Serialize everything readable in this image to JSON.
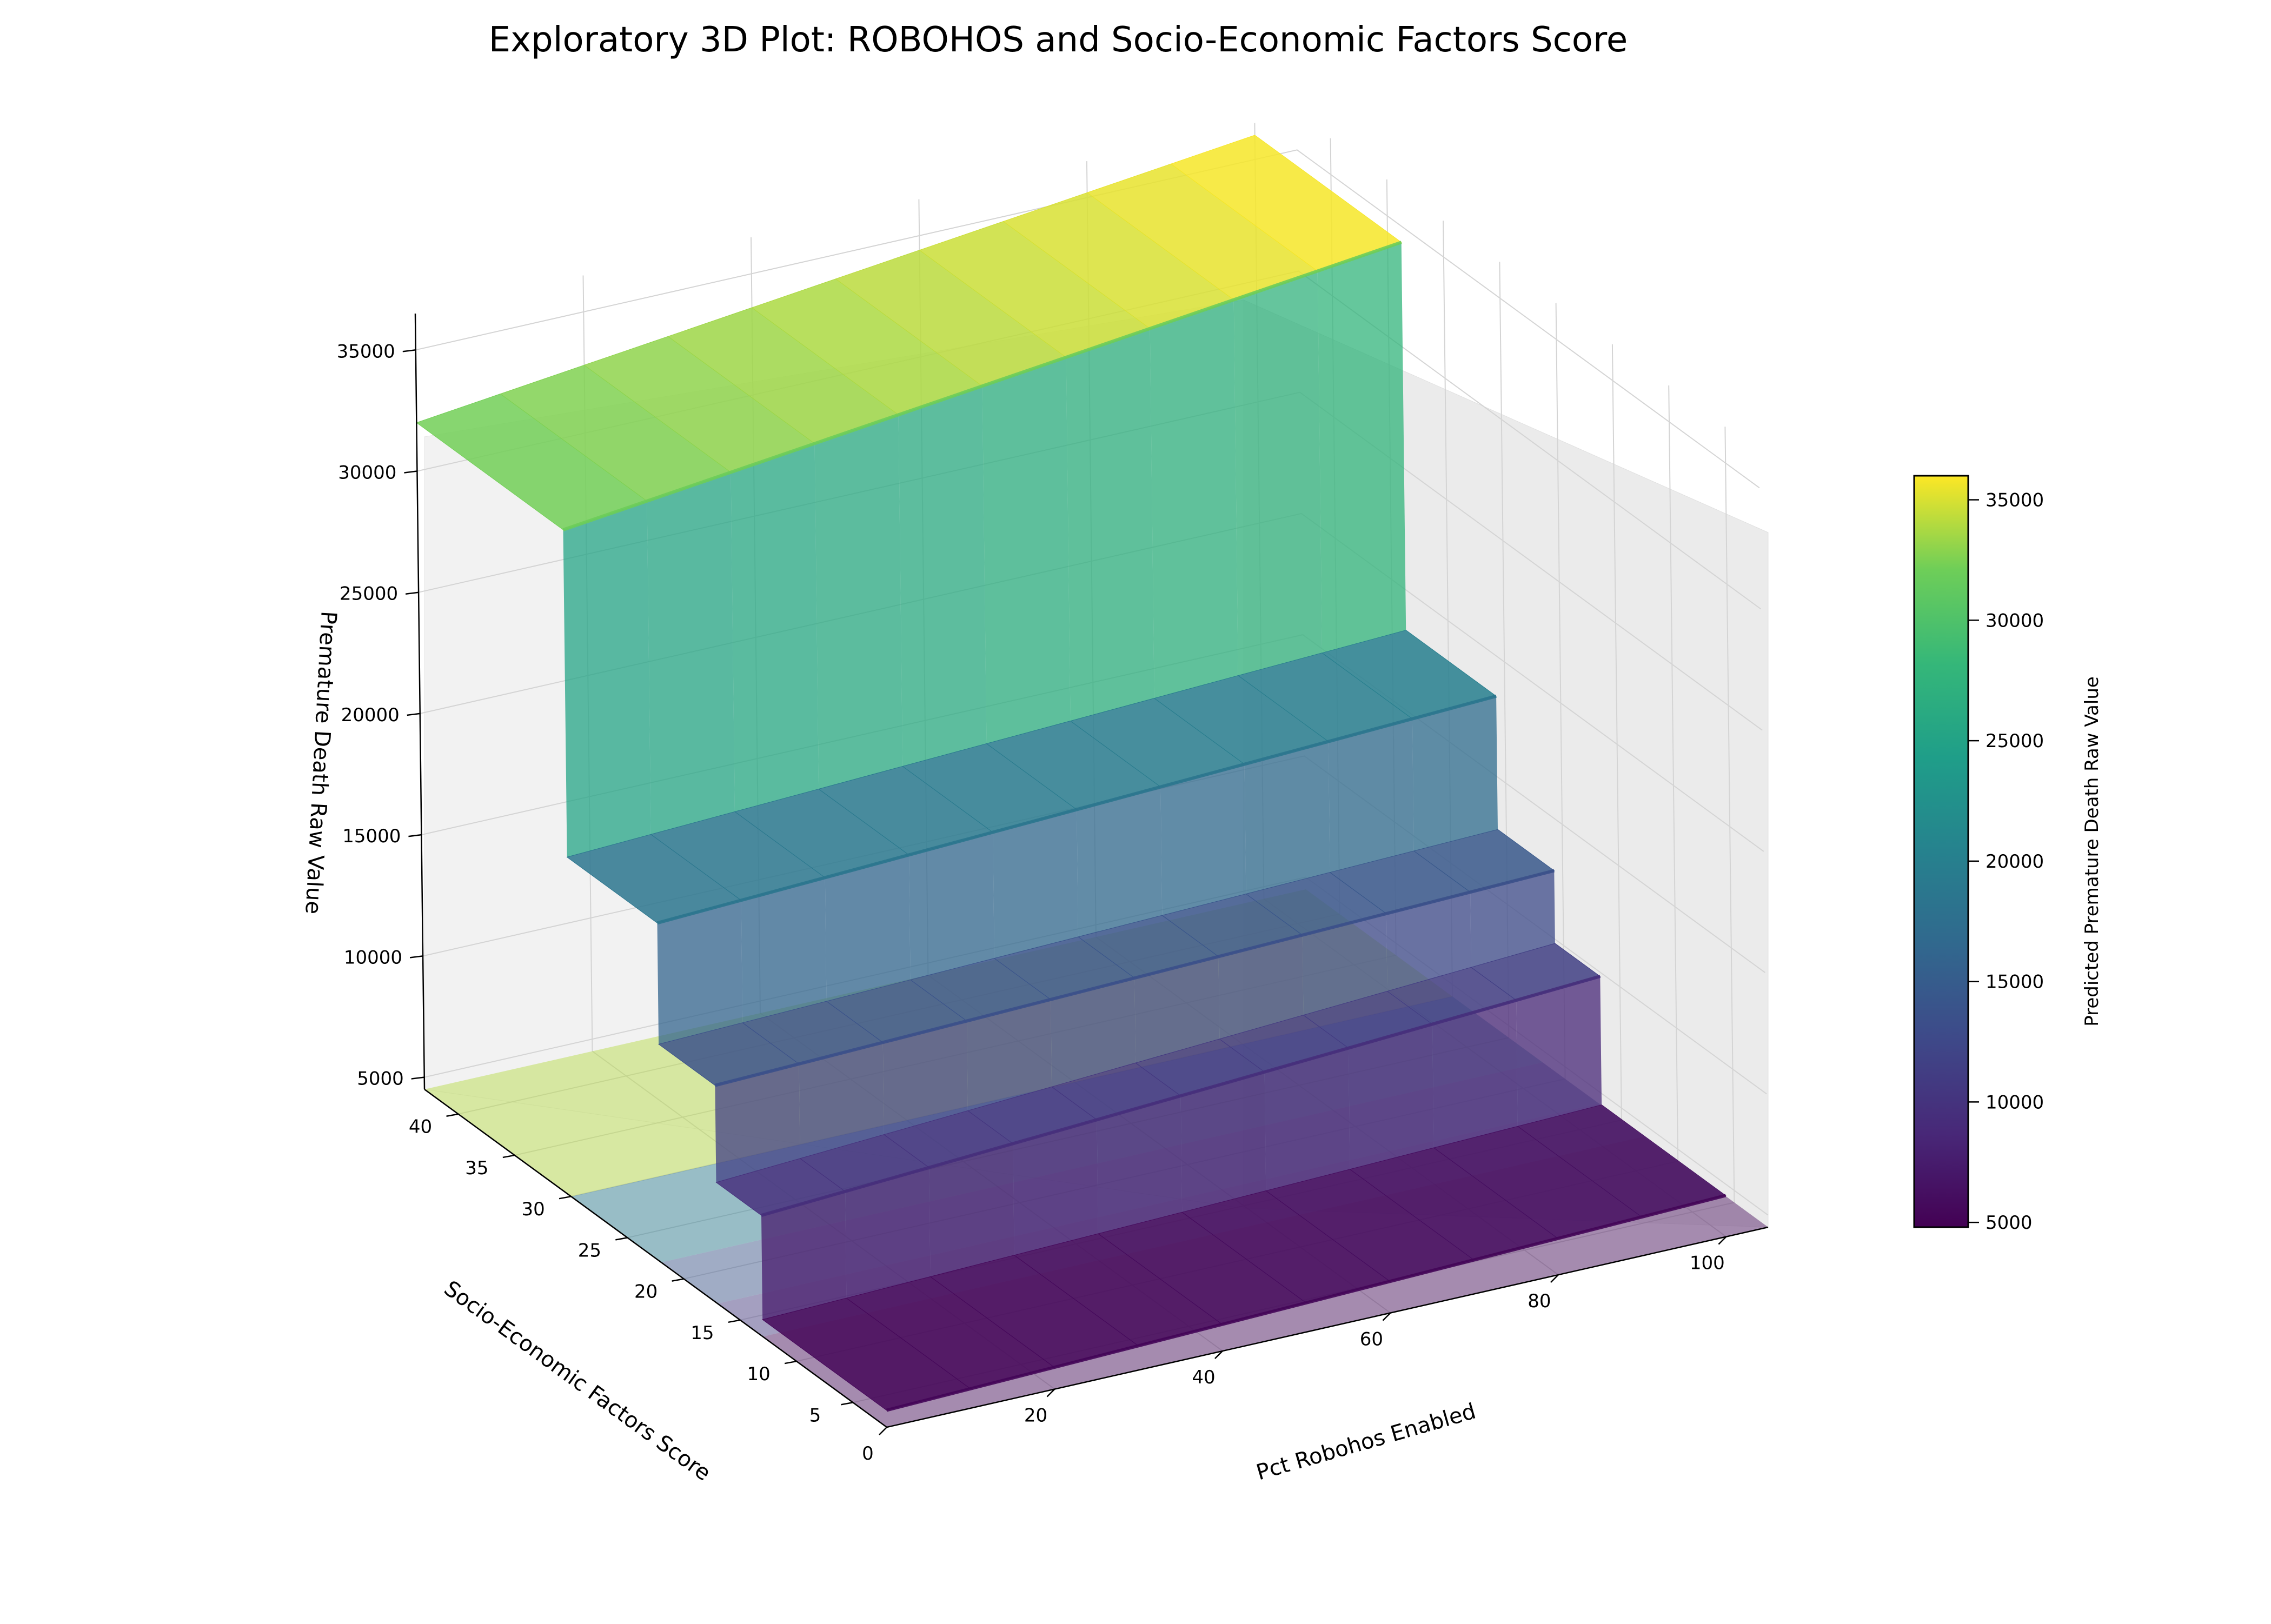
{
  "chart_data": {
    "type": "surface",
    "title": "Exploratory 3D Plot: ROBOHOS and Socio-Economic Factors Score",
    "xlabel": "Pct Robohos Enabled",
    "ylabel": "Socio-Economic Factors Score",
    "zlabel": "Premature Death Raw Value",
    "colorbar_label": "Predicted Premature Death Raw Value",
    "colormap": "viridis",
    "xlim": [
      0,
      105
    ],
    "ylim": [
      2,
      43
    ],
    "zlim": [
      4500,
      36500
    ],
    "xticks": [
      "0",
      "20",
      "40",
      "60",
      "80",
      "100"
    ],
    "yticks": [
      "5",
      "10",
      "15",
      "20",
      "25",
      "30",
      "35",
      "40"
    ],
    "zticks": [
      "5000",
      "10000",
      "15000",
      "20000",
      "25000",
      "30000",
      "35000"
    ],
    "colorbar_ticks": [
      "5000",
      "10000",
      "15000",
      "20000",
      "25000",
      "30000",
      "35000"
    ],
    "colorbar_range": [
      4800,
      36000
    ],
    "grid": true,
    "series": [
      {
        "x": [
          0,
          100
        ],
        "socio_economic_score": [
          2,
          13
        ],
        "z": [
          5200,
          6200
        ]
      },
      {
        "x": [
          0,
          100
        ],
        "socio_economic_score": [
          13,
          17
        ],
        "z": [
          9500,
          11500
        ]
      },
      {
        "x": [
          0,
          100
        ],
        "socio_economic_score": [
          17,
          22
        ],
        "z": [
          13500,
          14500
        ]
      },
      {
        "x": [
          0,
          100
        ],
        "socio_economic_score": [
          22,
          30
        ],
        "z": [
          18500,
          20000
        ]
      },
      {
        "x": [
          0,
          100
        ],
        "socio_economic_score": [
          30,
          43
        ],
        "z": [
          32000,
          36000
        ]
      }
    ],
    "bottom_contour": true
  }
}
